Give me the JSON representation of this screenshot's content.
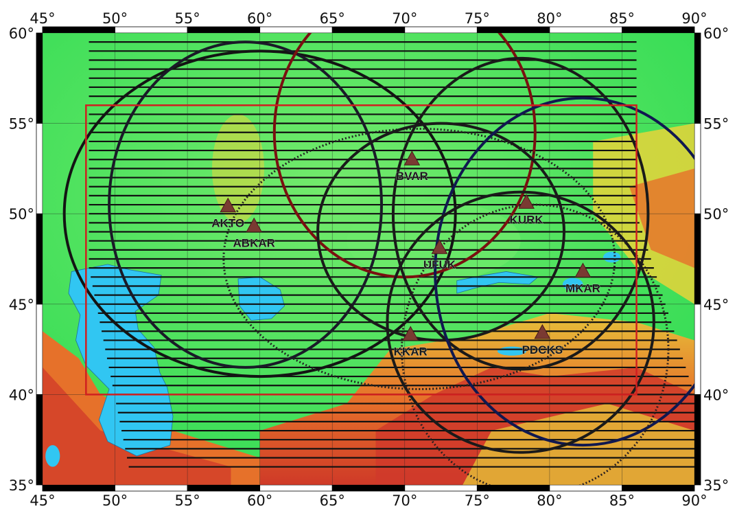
{
  "map": {
    "lon_range": [
      45,
      90
    ],
    "lat_range": [
      35,
      60
    ],
    "lon_ticks": [
      {
        "value": 45,
        "label": "45°"
      },
      {
        "value": 50,
        "label": "50°"
      },
      {
        "value": 55,
        "label": "55°"
      },
      {
        "value": 60,
        "label": "60°"
      },
      {
        "value": 65,
        "label": "65°"
      },
      {
        "value": 70,
        "label": "70°"
      },
      {
        "value": 75,
        "label": "75°"
      },
      {
        "value": 80,
        "label": "80°"
      },
      {
        "value": 85,
        "label": "85°"
      },
      {
        "value": 90,
        "label": "90°"
      }
    ],
    "lat_ticks": [
      {
        "value": 35,
        "label": "35°"
      },
      {
        "value": 40,
        "label": "40°"
      },
      {
        "value": 45,
        "label": "45°"
      },
      {
        "value": 50,
        "label": "50°"
      },
      {
        "value": 55,
        "label": "55°"
      },
      {
        "value": 60,
        "label": "60°"
      }
    ],
    "study_region": {
      "lon": [
        48,
        86
      ],
      "lat": [
        40,
        56
      ],
      "color": "#d02020"
    },
    "stations": [
      {
        "name": "AKTO",
        "lon": 57.8,
        "lat": 50.4
      },
      {
        "name": "ABKAR",
        "lon": 59.6,
        "lat": 49.3
      },
      {
        "name": "BVAR",
        "lon": 70.5,
        "lat": 53.0
      },
      {
        "name": "KURK",
        "lon": 78.4,
        "lat": 50.6
      },
      {
        "name": "UFUK",
        "lon": 72.4,
        "lat": 48.1
      },
      {
        "name": "MKAR",
        "lon": 82.3,
        "lat": 46.8
      },
      {
        "name": "PDCKS",
        "lon": 79.5,
        "lat": 43.4
      },
      {
        "name": "KKAR",
        "lon": 70.4,
        "lat": 43.3
      }
    ],
    "coverage_circles": [
      {
        "center_lon": 60.0,
        "center_lat": 50.0,
        "r_lon": 13.5,
        "r_lat": 9.0,
        "color": "#141414",
        "style": "solid"
      },
      {
        "center_lon": 59.0,
        "center_lat": 50.5,
        "r_lon": 9.4,
        "r_lat": 9.0,
        "color": "#1a1a28",
        "style": "solid"
      },
      {
        "center_lon": 70.0,
        "center_lat": 54.5,
        "r_lon": 9.0,
        "r_lat": 8.0,
        "color": "#7a1010",
        "style": "solid"
      },
      {
        "center_lon": 71.0,
        "center_lat": 47.5,
        "r_lon": 13.5,
        "r_lat": 7.2,
        "color": "#222222",
        "style": "dotted"
      },
      {
        "center_lon": 72.5,
        "center_lat": 49.0,
        "r_lon": 8.5,
        "r_lat": 6.0,
        "color": "#1a1a1a",
        "style": "solid"
      },
      {
        "center_lon": 78.0,
        "center_lat": 50.0,
        "r_lon": 8.8,
        "r_lat": 8.6,
        "color": "#1a1a1a",
        "style": "solid"
      },
      {
        "center_lon": 82.3,
        "center_lat": 46.8,
        "r_lon": 10.2,
        "r_lat": 9.6,
        "color": "#101850",
        "style": "solid"
      },
      {
        "center_lon": 78.0,
        "center_lat": 44.0,
        "r_lon": 9.2,
        "r_lat": 7.2,
        "color": "#1a1a1a",
        "style": "solid"
      },
      {
        "center_lon": 79.0,
        "center_lat": 42.5,
        "r_lon": 9.2,
        "r_lat": 8.0,
        "color": "#2a2020",
        "style": "dotted"
      }
    ],
    "hatch_lines": {
      "lat_start": 36.0,
      "lat_end": 59.5,
      "spacing": 0.5,
      "color": "#111111"
    },
    "water_bodies": [
      "Caspian Sea",
      "Aral Sea",
      "Lake Balkhash",
      "Lake Alakol",
      "Issyk-Kul"
    ],
    "colors": {
      "lowland": "#3ee05a",
      "plain": "#6de86a",
      "highland": "#e8d43a",
      "mountain": "#e6712a",
      "high_mountain": "#d03a2a",
      "water": "#31c6f2",
      "frame": "#000000"
    }
  }
}
